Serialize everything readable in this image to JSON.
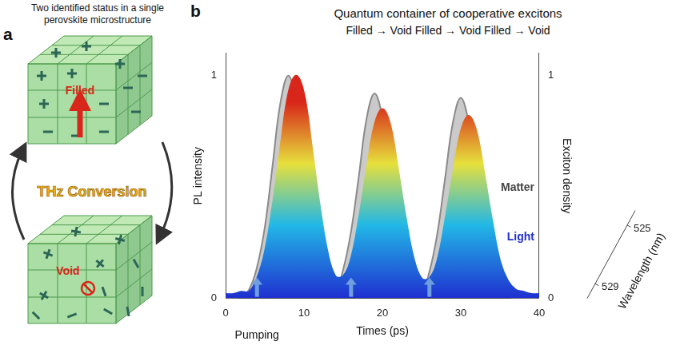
{
  "panel_a": {
    "label": "a",
    "title": "Two identified status in a single perovskite microstructure",
    "states": [
      "Filled",
      "Void"
    ],
    "conversion": "THz Conversion"
  },
  "chart_data": {
    "panel": "b",
    "type": "line",
    "title": "Quantum container of cooperative excitons",
    "subtitle": "Filled → Void Filled → Void Filled → Void",
    "x_label": "Times (ps)",
    "y_label": "PL intensity",
    "y2_label": "Exciton density",
    "x": [
      0,
      1,
      2,
      3,
      4,
      5,
      6,
      7,
      8,
      9,
      10,
      11,
      12,
      13,
      14,
      15,
      16,
      17,
      18,
      19,
      20,
      21,
      22,
      23,
      24,
      25,
      26,
      27,
      28,
      29,
      30,
      31,
      32,
      33,
      34,
      35,
      36,
      37,
      38,
      39,
      40
    ],
    "xlim": [
      0,
      40
    ],
    "xticks": [
      0,
      10,
      20,
      30,
      40
    ],
    "ylim": [
      0,
      1.1
    ],
    "yticks": [
      0,
      1
    ],
    "y2lim": [
      0,
      1.1
    ],
    "y2ticks": [
      0,
      1
    ],
    "grid": false,
    "pumping": {
      "label": "Pumping",
      "x": [
        4,
        16,
        26
      ]
    },
    "wavelength": {
      "label": "Wavelength (nm)",
      "lim": [
        530,
        524
      ],
      "ticks": [
        529,
        525
      ]
    },
    "series": [
      {
        "name": "Light",
        "type": "area",
        "color": "#d8261a",
        "axis": "y",
        "values": [
          0.02,
          0.02,
          0.03,
          0.03,
          0.09,
          0.21,
          0.42,
          0.68,
          0.92,
          1.0,
          0.92,
          0.68,
          0.42,
          0.21,
          0.1,
          0.1,
          0.18,
          0.36,
          0.58,
          0.78,
          0.85,
          0.78,
          0.58,
          0.36,
          0.18,
          0.09,
          0.09,
          0.17,
          0.35,
          0.56,
          0.75,
          0.82,
          0.75,
          0.56,
          0.35,
          0.17,
          0.08,
          0.04,
          0.03,
          0.02,
          0.02
        ]
      },
      {
        "name": "Matter",
        "type": "area",
        "color": "#8a8a8a",
        "axis": "y2",
        "values": [
          0,
          0,
          0.01,
          0.04,
          0.14,
          0.32,
          0.6,
          0.88,
          1.0,
          0.88,
          0.6,
          0.32,
          0.14,
          0.05,
          0.03,
          0.13,
          0.3,
          0.55,
          0.81,
          0.92,
          0.81,
          0.55,
          0.3,
          0.13,
          0.05,
          0.03,
          0.12,
          0.29,
          0.54,
          0.79,
          0.9,
          0.79,
          0.54,
          0.29,
          0.12,
          0.04,
          0.01,
          0,
          0,
          0,
          0
        ]
      }
    ]
  }
}
